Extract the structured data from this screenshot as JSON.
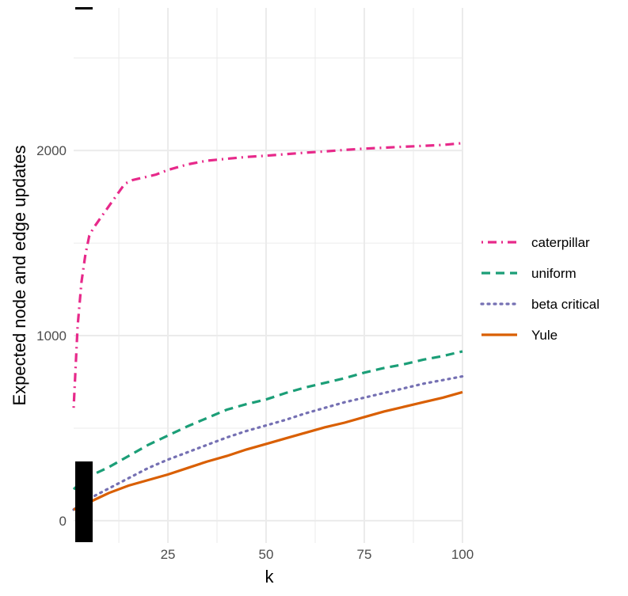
{
  "chart_data": {
    "type": "line",
    "title": "",
    "xlabel": "k",
    "ylabel": "Expected node and edge updates",
    "xlim": [
      1,
      100
    ],
    "ylim": [
      -120,
      2770
    ],
    "x_ticks": [
      25,
      50,
      75,
      100
    ],
    "y_ticks": [
      0,
      1000,
      2000
    ],
    "grid": true,
    "legend_position": "right",
    "series": [
      {
        "name": "caterpillar",
        "color": "#e7298a",
        "dash": "dotdash",
        "x": [
          1,
          2,
          3,
          4,
          5,
          6,
          7,
          8,
          10,
          12,
          14,
          16,
          18,
          20,
          22,
          25,
          30,
          35,
          40,
          45,
          50,
          55,
          60,
          65,
          70,
          75,
          80,
          85,
          90,
          95,
          100
        ],
        "y": [
          610,
          1050,
          1290,
          1440,
          1540,
          1580,
          1610,
          1640,
          1700,
          1760,
          1820,
          1840,
          1850,
          1860,
          1870,
          1895,
          1925,
          1945,
          1955,
          1965,
          1972,
          1980,
          1988,
          1995,
          2003,
          2010,
          2015,
          2020,
          2025,
          2030,
          2040
        ]
      },
      {
        "name": "uniform",
        "color": "#1b9e77",
        "dash": "dashed",
        "x": [
          1,
          3,
          5,
          10,
          15,
          20,
          25,
          30,
          35,
          40,
          45,
          50,
          55,
          60,
          65,
          70,
          75,
          80,
          85,
          90,
          95,
          100
        ],
        "y": [
          170,
          210,
          240,
          290,
          350,
          410,
          460,
          510,
          555,
          600,
          630,
          655,
          690,
          720,
          745,
          770,
          800,
          825,
          845,
          870,
          890,
          915
        ]
      },
      {
        "name": "beta critical",
        "color": "#7570b3",
        "dash": "dotted",
        "x": [
          1,
          3,
          5,
          10,
          15,
          20,
          25,
          30,
          35,
          40,
          45,
          50,
          55,
          60,
          65,
          70,
          75,
          80,
          85,
          90,
          95,
          100
        ],
        "y": [
          60,
          95,
          120,
          175,
          230,
          285,
          330,
          370,
          410,
          450,
          485,
          515,
          545,
          580,
          610,
          640,
          665,
          690,
          715,
          740,
          760,
          780
        ]
      },
      {
        "name": "Yule",
        "color": "#d95f02",
        "dash": "solid",
        "x": [
          1,
          3,
          5,
          10,
          15,
          20,
          25,
          30,
          35,
          40,
          45,
          50,
          55,
          60,
          65,
          70,
          75,
          80,
          85,
          90,
          95,
          100
        ],
        "y": [
          60,
          80,
          100,
          150,
          190,
          220,
          250,
          285,
          320,
          350,
          385,
          415,
          445,
          475,
          505,
          530,
          560,
          590,
          615,
          640,
          665,
          695
        ]
      }
    ]
  }
}
